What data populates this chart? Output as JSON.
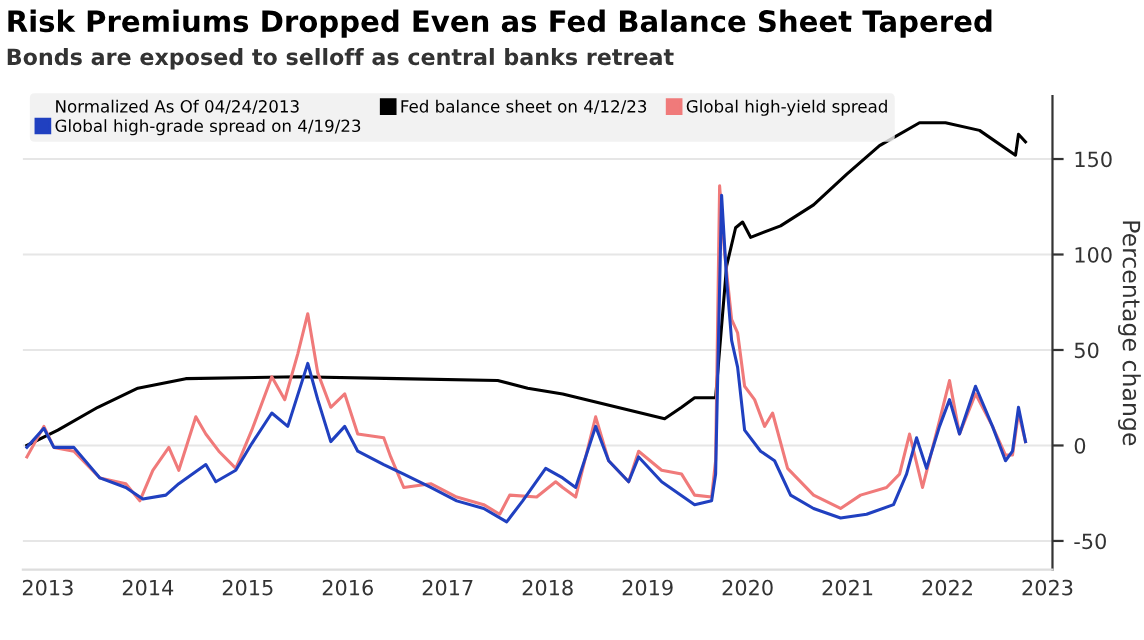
{
  "chart_data": {
    "type": "line",
    "title": "Risk Premiums Dropped Even as Fed Balance Sheet Tapered",
    "subtitle": "Bonds are exposed to selloff as central banks retreat",
    "ylabel": "Percentage change",
    "legend_title": "Normalized As Of 04/24/2013",
    "legend": "top",
    "grid": "y",
    "line_style": "solid",
    "marker": "none",
    "xlim": [
      2013.25,
      2023.55
    ],
    "xticks": [
      {
        "value": 2013.5,
        "label": "2013"
      },
      {
        "value": 2014.5,
        "label": "2014"
      },
      {
        "value": 2015.5,
        "label": "2015"
      },
      {
        "value": 2016.5,
        "label": "2016"
      },
      {
        "value": 2017.5,
        "label": "2017"
      },
      {
        "value": 2018.5,
        "label": "2018"
      },
      {
        "value": 2019.5,
        "label": "2019"
      },
      {
        "value": 2020.5,
        "label": "2020"
      },
      {
        "value": 2021.5,
        "label": "2021"
      },
      {
        "value": 2022.5,
        "label": "2022"
      },
      {
        "value": 2023.5,
        "label": "2023"
      }
    ],
    "ylim": [
      -65,
      183
    ],
    "yticks": [
      -50,
      0,
      50,
      100,
      150
    ],
    "series": [
      {
        "name": "Fed balance sheet on 4/12/23",
        "color": "#000000",
        "x": [
          2013.29,
          2013.6,
          2014.0,
          2014.4,
          2014.88,
          2016.0,
          2017.0,
          2018.0,
          2018.3,
          2018.65,
          2019.67,
          2019.84,
          2019.97,
          2020.18,
          2020.29,
          2020.38,
          2020.45,
          2020.53,
          2020.83,
          2021.16,
          2021.49,
          2021.82,
          2022.22,
          2022.48,
          2022.82,
          2023.18,
          2023.21,
          2023.28
        ],
        "values": [
          0,
          8,
          20,
          30,
          35,
          36,
          35,
          34,
          30,
          27,
          14,
          20,
          25,
          25,
          94,
          114,
          117,
          109,
          115,
          126,
          142,
          157,
          169,
          169,
          165,
          152,
          163,
          159
        ]
      },
      {
        "name": "Global high-yield spread",
        "color": "#f07a7a",
        "x": [
          2013.29,
          2013.46,
          2013.56,
          2013.76,
          2014.02,
          2014.28,
          2014.42,
          2014.55,
          2014.71,
          2014.81,
          2014.98,
          2015.08,
          2015.21,
          2015.38,
          2015.54,
          2015.74,
          2015.87,
          2016.0,
          2016.1,
          2016.2,
          2016.33,
          2016.47,
          2016.6,
          2016.86,
          2016.93,
          2017.06,
          2017.33,
          2017.59,
          2017.86,
          2018.02,
          2018.12,
          2018.39,
          2018.58,
          2018.65,
          2018.78,
          2018.98,
          2019.11,
          2019.31,
          2019.41,
          2019.64,
          2019.84,
          2019.97,
          2020.14,
          2020.18,
          2020.22,
          2020.27,
          2020.34,
          2020.4,
          2020.47,
          2020.57,
          2020.67,
          2020.75,
          2020.9,
          2021.16,
          2021.43,
          2021.63,
          2021.89,
          2022.02,
          2022.12,
          2022.25,
          2022.42,
          2022.52,
          2022.62,
          2022.78,
          2022.95,
          2023.08,
          2023.15,
          2023.21,
          2023.28
        ],
        "values": [
          -6,
          10,
          -1,
          -3,
          -17,
          -20,
          -29,
          -13,
          -1,
          -13,
          15,
          6,
          -3,
          -12,
          8,
          36,
          24,
          48,
          69,
          38,
          20,
          27,
          6,
          4,
          -6,
          -22,
          -20,
          -27,
          -31,
          -36,
          -26,
          -27,
          -19,
          -22,
          -27,
          15,
          -8,
          -19,
          -3,
          -13,
          -15,
          -26,
          -27,
          -8,
          136,
          101,
          66,
          59,
          31,
          24,
          10,
          17,
          -12,
          -26,
          -33,
          -26,
          -22,
          -15,
          6,
          -22,
          13,
          34,
          6,
          27,
          10,
          -5,
          -5,
          17,
          2
        ]
      },
      {
        "name": "Global high-grade spread on 4/19/23",
        "color": "#2040c0",
        "x": [
          2013.29,
          2013.46,
          2013.56,
          2013.76,
          2014.02,
          2014.28,
          2014.45,
          2014.68,
          2014.81,
          2015.08,
          2015.18,
          2015.38,
          2015.54,
          2015.74,
          2015.9,
          2016.1,
          2016.2,
          2016.33,
          2016.47,
          2016.6,
          2016.86,
          2017.06,
          2017.33,
          2017.59,
          2017.86,
          2018.09,
          2018.25,
          2018.48,
          2018.65,
          2018.78,
          2018.98,
          2019.11,
          2019.31,
          2019.41,
          2019.64,
          2019.97,
          2020.14,
          2020.18,
          2020.24,
          2020.29,
          2020.34,
          2020.4,
          2020.47,
          2020.63,
          2020.77,
          2020.93,
          2021.16,
          2021.43,
          2021.69,
          2021.96,
          2022.09,
          2022.19,
          2022.29,
          2022.42,
          2022.52,
          2022.62,
          2022.78,
          2022.95,
          2023.08,
          2023.15,
          2023.21,
          2023.28
        ],
        "values": [
          -1,
          9,
          -1,
          -1,
          -17,
          -22,
          -28,
          -26,
          -20,
          -10,
          -19,
          -13,
          1,
          17,
          10,
          43,
          24,
          2,
          10,
          -3,
          -10,
          -15,
          -22,
          -29,
          -33,
          -40,
          -29,
          -12,
          -17,
          -22,
          10,
          -8,
          -19,
          -6,
          -19,
          -31,
          -29,
          -15,
          131,
          87,
          55,
          41,
          8,
          -3,
          -8,
          -26,
          -33,
          -38,
          -36,
          -31,
          -15,
          4,
          -12,
          10,
          24,
          6,
          31,
          10,
          -8,
          -3,
          20,
          2
        ]
      }
    ]
  }
}
